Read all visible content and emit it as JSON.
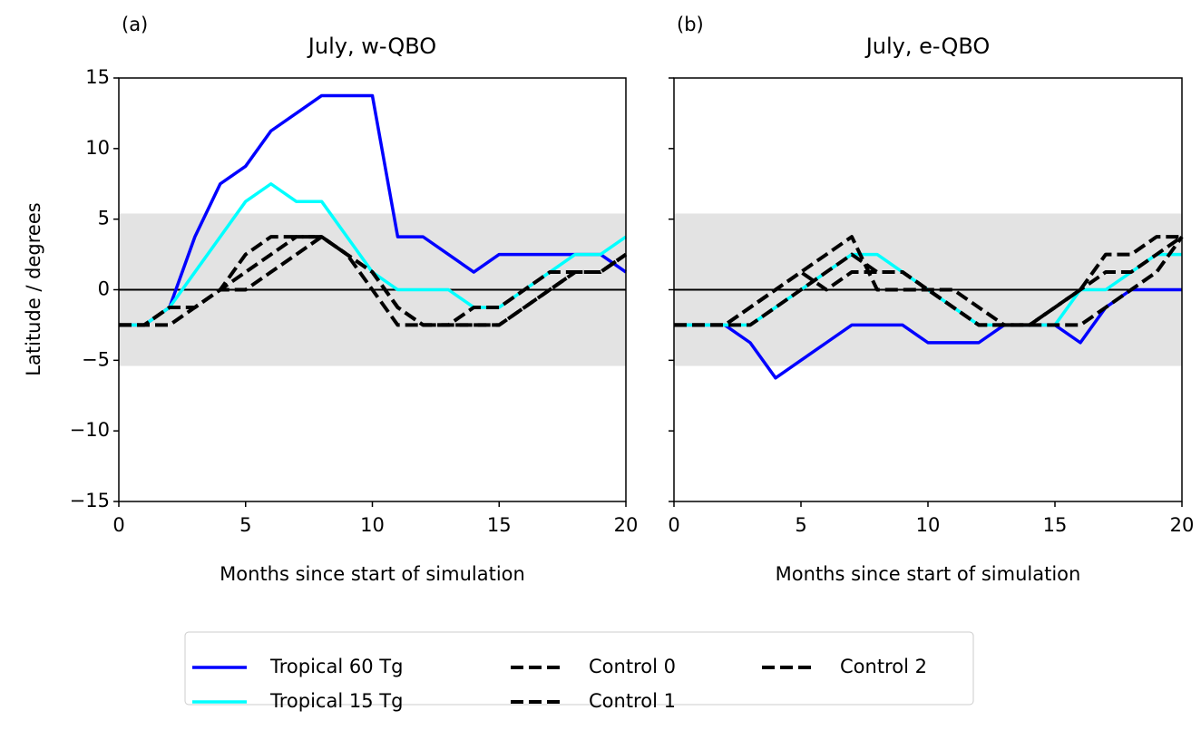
{
  "chart_data": [
    {
      "type": "line",
      "panel_label": "(a)",
      "title": "July, w-QBO",
      "xlabel": "Months since start of simulation",
      "ylabel": "Latitude / degrees",
      "x": [
        0,
        1,
        2,
        3,
        4,
        5,
        6,
        7,
        8,
        9,
        10,
        11,
        12,
        13,
        14,
        15,
        16,
        17,
        18,
        19,
        20
      ],
      "xlim": [
        0,
        20
      ],
      "xticks": [
        0,
        5,
        10,
        15,
        20
      ],
      "ylim": [
        -15,
        15
      ],
      "yticks": [
        {
          "value": -15,
          "label": "−15"
        },
        {
          "value": -10,
          "label": "−10"
        },
        {
          "value": -5,
          "label": "−5"
        },
        0,
        5,
        10,
        15
      ],
      "ytick_labels": true,
      "shaded_range": [
        -5.4,
        5.4
      ],
      "hline": 0,
      "series": [
        {
          "name": "Tropical 60 Tg",
          "color": "#0000ff",
          "dashed": false,
          "values": [
            -2.5,
            -2.5,
            -1.25,
            3.75,
            7.5,
            8.75,
            11.25,
            12.5,
            13.75,
            13.75,
            13.75,
            3.75,
            3.75,
            2.5,
            1.25,
            2.5,
            2.5,
            2.5,
            2.5,
            2.5,
            1.25
          ]
        },
        {
          "name": "Tropical 15 Tg",
          "color": "#00ffff",
          "dashed": false,
          "values": [
            -2.5,
            -2.5,
            -1.25,
            1.25,
            3.75,
            6.25,
            7.5,
            6.25,
            6.25,
            3.75,
            1.25,
            0,
            0,
            0,
            -1.25,
            -1.25,
            0,
            1.25,
            2.5,
            2.5,
            3.75
          ]
        },
        {
          "name": "Control 0",
          "color": "#000000",
          "dashed": true,
          "values": [
            -2.5,
            -2.5,
            -1.25,
            -1.25,
            0,
            2.5,
            3.75,
            3.75,
            3.75,
            2.5,
            0,
            -2.5,
            -2.5,
            -2.5,
            -2.5,
            -2.5,
            -1.25,
            0,
            1.25,
            1.25,
            2.5
          ]
        },
        {
          "name": "Control 1",
          "color": "#000000",
          "dashed": true,
          "values": [
            -2.5,
            -2.5,
            -1.25,
            -1.25,
            0,
            1.25,
            2.5,
            3.75,
            3.75,
            2.5,
            1.25,
            -1.25,
            -2.5,
            -2.5,
            -1.25,
            -1.25,
            0,
            1.25,
            1.25,
            1.25,
            2.5
          ]
        },
        {
          "name": "Control 2",
          "color": "#000000",
          "dashed": true,
          "values": [
            -2.5,
            -2.5,
            -2.5,
            -1.25,
            0,
            0,
            1.25,
            2.5,
            3.75,
            2.5,
            1.25,
            -1.25,
            -2.5,
            -2.5,
            -2.5,
            -2.5,
            -1.25,
            0,
            1.25,
            1.25,
            2.5
          ]
        }
      ]
    },
    {
      "type": "line",
      "panel_label": "(b)",
      "title": "July, e-QBO",
      "xlabel": "Months since start of simulation",
      "x": [
        0,
        1,
        2,
        3,
        4,
        5,
        6,
        7,
        8,
        9,
        10,
        11,
        12,
        13,
        14,
        15,
        16,
        17,
        18,
        19,
        20
      ],
      "xlim": [
        0,
        20
      ],
      "xticks": [
        0,
        5,
        10,
        15,
        20
      ],
      "ylim": [
        -15,
        15
      ],
      "yticks": [
        -15,
        -10,
        -5,
        0,
        5,
        10,
        15
      ],
      "ytick_labels": false,
      "shaded_range": [
        -5.4,
        5.4
      ],
      "hline": 0,
      "series": [
        {
          "color": "#0000ff",
          "dashed": false,
          "values": [
            -2.5,
            -2.5,
            -2.5,
            -3.75,
            -6.25,
            -5,
            -3.75,
            -2.5,
            -2.5,
            -2.5,
            -3.75,
            -3.75,
            -3.75,
            -2.5,
            -2.5,
            -2.5,
            -3.75,
            -1.25,
            0,
            0,
            0
          ]
        },
        {
          "color": "#00ffff",
          "dashed": false,
          "values": [
            -2.5,
            -2.5,
            -2.5,
            -2.5,
            -1.25,
            0,
            1.25,
            2.5,
            2.5,
            1.25,
            0,
            -1.25,
            -2.5,
            -2.5,
            -2.5,
            -2.5,
            0,
            0,
            1.25,
            2.5,
            2.5
          ]
        },
        {
          "color": "#000000",
          "dashed": true,
          "values": [
            -2.5,
            -2.5,
            -2.5,
            -2.5,
            -1.25,
            0,
            1.25,
            2.5,
            1.25,
            1.25,
            0,
            -1.25,
            -2.5,
            -2.5,
            -2.5,
            -2.5,
            -2.5,
            -1.25,
            0,
            1.25,
            3.75
          ]
        },
        {
          "color": "#000000",
          "dashed": true,
          "values": [
            -2.5,
            -2.5,
            -2.5,
            -1.25,
            0,
            1.25,
            0,
            1.25,
            1.25,
            1.25,
            0,
            -1.25,
            -2.5,
            -2.5,
            -2.5,
            -1.25,
            0,
            1.25,
            1.25,
            2.5,
            3.75
          ]
        },
        {
          "color": "#000000",
          "dashed": true,
          "values": [
            -2.5,
            -2.5,
            -2.5,
            -1.25,
            0,
            1.25,
            2.5,
            3.75,
            0,
            0,
            0,
            0,
            -1.25,
            -2.5,
            -2.5,
            -1.25,
            0,
            2.5,
            2.5,
            3.75,
            3.75
          ]
        }
      ]
    }
  ]
}
